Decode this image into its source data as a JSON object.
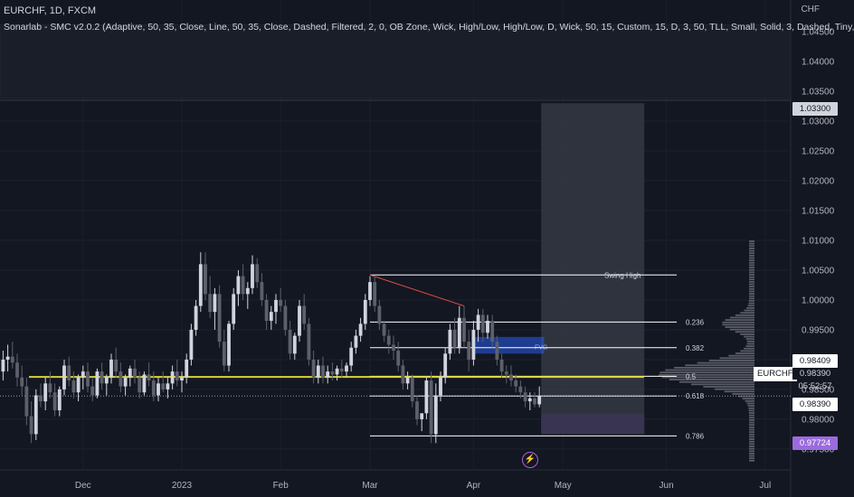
{
  "header": {
    "title": "EURCHF, 1D, FXCM",
    "indicator": "Sonarlab - SMC v2.0.2 (Adaptive, 50, 35, Close, Line, 50, 35, Close, Dashed, Filtered, 2, 0, OB Zone, Wick, High/Low, High/Low, D, Wick, 50, 15, Custom, 15, D, 3, 50, TLL, Small, Solid, 3, Dashed, Tiny,"
  },
  "currency": "CHF",
  "badges": {
    "max": "1.03300",
    "level2": "0.98409",
    "symbol": "EURCHF",
    "symbol_price": "0.98390",
    "countdown": "05:52:57",
    "current": "0.98390",
    "poc": "0.97724"
  },
  "colors": {
    "background": "#131722",
    "bull": "#d1d4dc",
    "bear": "#5d606b",
    "yellow_line": "#d8d23a",
    "fvg": "#2962ff",
    "profile": "#9598a1",
    "purple": "#9c6ade"
  },
  "icons": {
    "bolt": "lightning-icon"
  },
  "chart_data": {
    "type": "candlestick",
    "y_axis": {
      "range": [
        0.9715,
        1.0485
      ],
      "ticks": [
        "1.04500",
        "1.04000",
        "1.03500",
        "1.03000",
        "1.02500",
        "1.02000",
        "1.01500",
        "1.01000",
        "1.00500",
        "1.00000",
        "0.99500",
        "0.99000",
        "0.98500",
        "0.98000",
        "0.97500"
      ]
    },
    "x_axis": {
      "ticks": [
        {
          "label": "Dec",
          "i": 17
        },
        {
          "label": "2023",
          "i": 38
        },
        {
          "label": "Feb",
          "i": 59
        },
        {
          "label": "Mar",
          "i": 78
        },
        {
          "label": "Apr",
          "i": 100
        },
        {
          "label": "May",
          "i": 119
        },
        {
          "label": "Jun",
          "i": 141
        },
        {
          "label": "Jul",
          "i": 162
        }
      ]
    },
    "candles": [
      [
        0.988,
        0.9915,
        0.9865,
        0.99
      ],
      [
        0.99,
        0.9925,
        0.988,
        0.9905
      ],
      [
        0.9905,
        0.993,
        0.9885,
        0.9895
      ],
      [
        0.9895,
        0.991,
        0.9855,
        0.987
      ],
      [
        0.987,
        0.989,
        0.984,
        0.9855
      ],
      [
        0.9855,
        0.987,
        0.979,
        0.9805
      ],
      [
        0.9805,
        0.983,
        0.976,
        0.9775
      ],
      [
        0.9775,
        0.985,
        0.9765,
        0.984
      ],
      [
        0.984,
        0.986,
        0.982,
        0.983
      ],
      [
        0.983,
        0.987,
        0.9815,
        0.986
      ],
      [
        0.986,
        0.988,
        0.9835,
        0.9845
      ],
      [
        0.9845,
        0.986,
        0.9805,
        0.9815
      ],
      [
        0.9815,
        0.9855,
        0.9805,
        0.985
      ],
      [
        0.985,
        0.99,
        0.984,
        0.989
      ],
      [
        0.989,
        0.9905,
        0.9855,
        0.9865
      ],
      [
        0.9865,
        0.988,
        0.9835,
        0.9845
      ],
      [
        0.9845,
        0.9875,
        0.983,
        0.987
      ],
      [
        0.987,
        0.989,
        0.985,
        0.988
      ],
      [
        0.988,
        0.9895,
        0.9845,
        0.9855
      ],
      [
        0.9855,
        0.987,
        0.983,
        0.984
      ],
      [
        0.984,
        0.9885,
        0.9835,
        0.988
      ],
      [
        0.988,
        0.9895,
        0.985,
        0.986
      ],
      [
        0.986,
        0.9875,
        0.984,
        0.987
      ],
      [
        0.987,
        0.991,
        0.986,
        0.99
      ],
      [
        0.99,
        0.992,
        0.987,
        0.988
      ],
      [
        0.988,
        0.9895,
        0.9845,
        0.9855
      ],
      [
        0.9855,
        0.9875,
        0.984,
        0.987
      ],
      [
        0.987,
        0.989,
        0.9855,
        0.9885
      ],
      [
        0.9885,
        0.99,
        0.986,
        0.987
      ],
      [
        0.987,
        0.988,
        0.9835,
        0.9845
      ],
      [
        0.9845,
        0.988,
        0.984,
        0.9875
      ],
      [
        0.9875,
        0.9895,
        0.9855,
        0.9865
      ],
      [
        0.9865,
        0.988,
        0.983,
        0.984
      ],
      [
        0.984,
        0.987,
        0.983,
        0.986
      ],
      [
        0.986,
        0.988,
        0.9845,
        0.985
      ],
      [
        0.985,
        0.987,
        0.9835,
        0.986
      ],
      [
        0.986,
        0.989,
        0.985,
        0.988
      ],
      [
        0.988,
        0.99,
        0.9855,
        0.9865
      ],
      [
        0.9865,
        0.988,
        0.9845,
        0.987
      ],
      [
        0.987,
        0.991,
        0.986,
        0.99
      ],
      [
        0.99,
        0.996,
        0.989,
        0.995
      ],
      [
        0.995,
        1.0,
        0.994,
        0.999
      ],
      [
        0.999,
        1.008,
        0.998,
        1.006
      ],
      [
        1.006,
        1.008,
        1.0,
        1.001
      ],
      [
        1.001,
        1.004,
        0.997,
        0.998
      ],
      [
        0.998,
        1.002,
        0.995,
        1.001
      ],
      [
        1.001,
        1.0025,
        0.992,
        0.993
      ],
      [
        0.993,
        0.995,
        0.988,
        0.989
      ],
      [
        0.989,
        0.9965,
        0.988,
        0.996
      ],
      [
        0.996,
        1.002,
        0.995,
        1.001
      ],
      [
        1.001,
        1.005,
        0.999,
        1.004
      ],
      [
        1.004,
        1.006,
        1.0,
        1.001
      ],
      [
        1.001,
        1.003,
        0.9985,
        1.002
      ],
      [
        1.002,
        1.0075,
        1.001,
        1.006
      ],
      [
        1.006,
        1.007,
        1.002,
        1.003
      ],
      [
        1.003,
        1.0045,
        0.999,
        1.0
      ],
      [
        1.0,
        1.001,
        0.995,
        0.9965
      ],
      [
        0.9965,
        0.999,
        0.995,
        0.998
      ],
      [
        0.998,
        1.001,
        0.996,
        1.0
      ],
      [
        1.0,
        1.002,
        0.998,
        0.999
      ],
      [
        0.999,
        1.0,
        0.994,
        0.995
      ],
      [
        0.995,
        0.9965,
        0.99,
        0.991
      ],
      [
        0.991,
        0.9945,
        0.99,
        0.994
      ],
      [
        0.994,
        1.0,
        0.993,
        0.999
      ],
      [
        0.999,
        1.001,
        0.995,
        0.996
      ],
      [
        0.996,
        0.997,
        0.989,
        0.99
      ],
      [
        0.99,
        0.9915,
        0.986,
        0.987
      ],
      [
        0.987,
        0.99,
        0.986,
        0.989
      ],
      [
        0.989,
        0.9905,
        0.986,
        0.987
      ],
      [
        0.987,
        0.989,
        0.986,
        0.988
      ],
      [
        0.988,
        0.9895,
        0.9865,
        0.9875
      ],
      [
        0.9875,
        0.989,
        0.9865,
        0.9885
      ],
      [
        0.9885,
        0.99,
        0.987,
        0.988
      ],
      [
        0.988,
        0.9895,
        0.987,
        0.989
      ],
      [
        0.989,
        0.993,
        0.988,
        0.992
      ],
      [
        0.992,
        0.995,
        0.991,
        0.994
      ],
      [
        0.994,
        0.997,
        0.993,
        0.996
      ],
      [
        0.996,
        1.001,
        0.995,
        1.0
      ],
      [
        1.0,
        1.004,
        0.999,
        1.003
      ],
      [
        1.003,
        1.004,
        0.998,
        0.999
      ],
      [
        0.999,
        1.0,
        0.995,
        0.996
      ],
      [
        0.996,
        0.9965,
        0.993,
        0.994
      ],
      [
        0.994,
        0.995,
        0.991,
        0.9925
      ],
      [
        0.9925,
        0.994,
        0.99,
        0.9915
      ],
      [
        0.9915,
        0.993,
        0.988,
        0.989
      ],
      [
        0.989,
        0.99,
        0.985,
        0.986
      ],
      [
        0.986,
        0.988,
        0.985,
        0.987
      ],
      [
        0.987,
        0.9875,
        0.982,
        0.983
      ],
      [
        0.983,
        0.984,
        0.979,
        0.98
      ],
      [
        0.98,
        0.981,
        0.978,
        0.981
      ],
      [
        0.981,
        0.987,
        0.98,
        0.9865
      ],
      [
        0.9865,
        0.988,
        0.976,
        0.9775
      ],
      [
        0.9775,
        0.986,
        0.976,
        0.984
      ],
      [
        0.984,
        0.988,
        0.983,
        0.987
      ],
      [
        0.987,
        0.992,
        0.986,
        0.991
      ],
      [
        0.991,
        0.996,
        0.99,
        0.995
      ],
      [
        0.995,
        0.997,
        0.991,
        0.992
      ],
      [
        0.992,
        0.999,
        0.991,
        0.997
      ],
      [
        0.997,
        0.999,
        0.992,
        0.993
      ],
      [
        0.993,
        0.995,
        0.988,
        0.99
      ],
      [
        0.99,
        0.9965,
        0.989,
        0.995
      ],
      [
        0.995,
        0.9985,
        0.993,
        0.9975
      ],
      [
        0.9975,
        0.9985,
        0.993,
        0.9945
      ],
      [
        0.9945,
        0.9975,
        0.9935,
        0.9965
      ],
      [
        0.9965,
        0.9975,
        0.992,
        0.993
      ],
      [
        0.993,
        0.994,
        0.989,
        0.99
      ],
      [
        0.99,
        0.991,
        0.987,
        0.988
      ],
      [
        0.988,
        0.989,
        0.986,
        0.9875
      ],
      [
        0.9875,
        0.989,
        0.9855,
        0.9865
      ],
      [
        0.9865,
        0.9875,
        0.9845,
        0.9855
      ],
      [
        0.9855,
        0.9865,
        0.9835,
        0.9845
      ],
      [
        0.9845,
        0.9855,
        0.982,
        0.983
      ],
      [
        0.983,
        0.9845,
        0.9815,
        0.9835
      ],
      [
        0.9835,
        0.9845,
        0.982,
        0.9825
      ],
      [
        0.9825,
        0.9855,
        0.982,
        0.9839
      ]
    ],
    "levels": {
      "yellow_line": 0.9871,
      "fib": [
        {
          "label": "0.236",
          "value": 0.9963
        },
        {
          "label": "0.382",
          "value": 0.992
        },
        {
          "label": "0.5",
          "value": 0.9872
        },
        {
          "label": "0.618",
          "value": 0.9839
        },
        {
          "label": "0.786",
          "value": 0.9772
        }
      ],
      "swing_high": {
        "label": "Swing High",
        "value": 1.0042
      },
      "fvg_label": "FVG",
      "range_box": [
        0.9775,
        1.033
      ]
    }
  }
}
